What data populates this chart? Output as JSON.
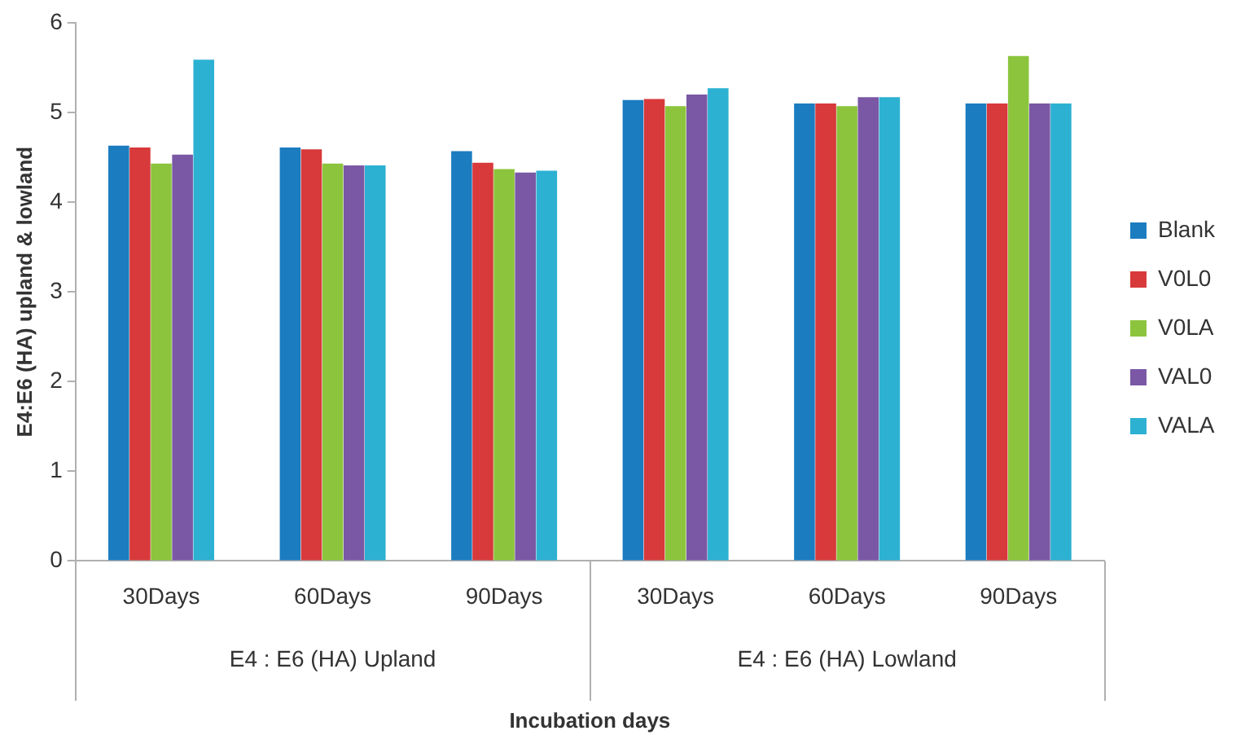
{
  "chart_data": {
    "type": "bar",
    "ylabel": "E4:E6 (HA) upland & lowland",
    "xlabel": "Incubation days",
    "categories": [
      "30Days",
      "60Days",
      "90Days",
      "30Days",
      "60Days",
      "90Days"
    ],
    "annotations": [
      "E4 : E6 (HA) Upland",
      "E4 : E6 (HA) Lowland"
    ],
    "ylim": [
      0,
      6
    ],
    "yticks": [
      0,
      1,
      2,
      3,
      4,
      5,
      6
    ],
    "grid": false,
    "legend": "right",
    "series": [
      {
        "name": "Blank",
        "color": "#1b7cc0",
        "values": [
          4.63,
          4.61,
          4.57,
          5.14,
          5.1,
          5.1
        ]
      },
      {
        "name": "V0L0",
        "color": "#d8393b",
        "values": [
          4.61,
          4.59,
          4.44,
          5.15,
          5.1,
          5.1
        ]
      },
      {
        "name": "V0LA",
        "color": "#8cc43d",
        "values": [
          4.43,
          4.43,
          4.37,
          5.07,
          5.07,
          5.63
        ]
      },
      {
        "name": "VAL0",
        "color": "#7a58a5",
        "values": [
          4.53,
          4.41,
          4.33,
          5.2,
          5.17,
          5.1
        ]
      },
      {
        "name": "VALA",
        "color": "#2cb1d2",
        "values": [
          5.59,
          4.41,
          4.35,
          5.27,
          5.17,
          5.1
        ]
      }
    ]
  }
}
